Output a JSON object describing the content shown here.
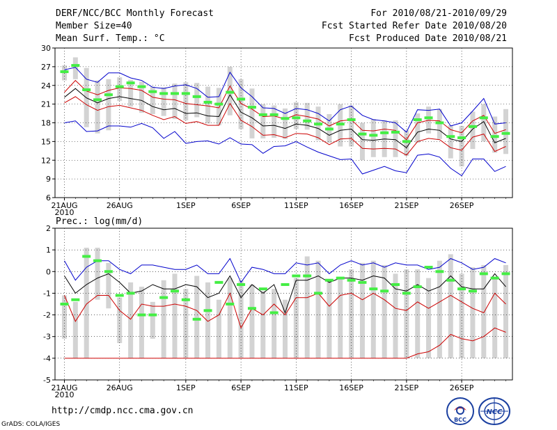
{
  "header": {
    "title": "DERF/NCC/BCC Monthly Forecast",
    "member_size": "Member Size=40",
    "variable": "Mean Surf. Temp.: °C",
    "period": "For 2010/08/21-2010/09/29",
    "started": "Fcst Started Refer Date 2010/08/20",
    "produced": "Fcst Produced Date 2010/08/21"
  },
  "footer": {
    "url": "http://cmdp.ncc.cma.gov.cn",
    "grads": "GrADS: COLA/IGES",
    "logo_left": "BCC",
    "logo_right": "NCC"
  },
  "colors": {
    "max": "#0000cc",
    "min": "#cc0000",
    "mean": "#000000",
    "sd": "#e8404a",
    "box": "#d3d3d3",
    "clim": "#44ee44"
  },
  "chart_data": [
    {
      "type": "line",
      "title": "Mean Surf. Temp.: °C",
      "ylabel": "°C",
      "ylim": [
        6,
        30
      ],
      "yticks": [
        6,
        9,
        12,
        15,
        18,
        21,
        24,
        27,
        30
      ],
      "xlim": [
        0.5,
        40
      ],
      "xticks": [
        {
          "x": 1,
          "label": "21AUG",
          "sub": "2010"
        },
        {
          "x": 6,
          "label": "26AUG"
        },
        {
          "x": 12,
          "label": "1SEP"
        },
        {
          "x": 17,
          "label": "6SEP"
        },
        {
          "x": 22,
          "label": "11SEP"
        },
        {
          "x": 27,
          "label": "16SEP"
        },
        {
          "x": 32,
          "label": "21SEP"
        },
        {
          "x": 37,
          "label": "26SEP"
        }
      ],
      "series": [
        {
          "name": "max",
          "values": [
            18,
            18.3,
            16.6,
            16.7,
            17.5,
            17.5,
            17.3,
            17.9,
            17.2,
            15.5,
            16.6,
            14.7,
            15.0,
            15.1,
            14.6,
            15.6,
            14.6,
            14.5,
            13.1,
            14.2,
            14.3,
            15.0,
            14.1,
            13.3,
            12.7,
            12.1,
            12.2,
            9.8,
            10.4,
            11.0,
            10.3,
            10.0,
            12.8,
            13.0,
            12.5,
            10.7,
            9.5,
            12.2,
            12.2,
            10.2,
            11.0
          ]
        },
        {
          "name": "max_top",
          "values": [
            26.5,
            26.9,
            25.0,
            24.5,
            26.0,
            26.0,
            25.2,
            24.8,
            23.7,
            23.5,
            23.9,
            24.1,
            23.5,
            22.1,
            22.2,
            26.1,
            23.6,
            22.2,
            20.4,
            20.3,
            19.5,
            20.3,
            20.1,
            19.5,
            18.3,
            20.1,
            20.7,
            19.2,
            18.5,
            18.3,
            18.0,
            16.5,
            20.1,
            20.0,
            20.2,
            17.5,
            18.0,
            19.9,
            21.9,
            17.8,
            18.0
          ]
        }
      ],
      "mean": [
        22.1,
        23.5,
        22.0,
        21.2,
        21.9,
        22.2,
        21.9,
        21.6,
        20.6,
        20.1,
        20.3,
        19.5,
        19.6,
        19.1,
        19.0,
        22.5,
        19.7,
        18.8,
        17.5,
        17.6,
        17.1,
        17.8,
        17.6,
        17.1,
        16.0,
        16.8,
        17.0,
        15.3,
        15.2,
        15.4,
        15.3,
        14.0,
        16.5,
        17.0,
        16.8,
        15.4,
        15.0,
        17.0,
        18.2,
        14.8,
        15.5
      ],
      "upper": [
        22.9,
        24.8,
        23.1,
        22.5,
        23.2,
        23.6,
        23.5,
        23.2,
        22.1,
        21.8,
        21.7,
        21.1,
        20.9,
        20.7,
        20.4,
        23.9,
        21.1,
        20.2,
        19.0,
        19.1,
        18.6,
        19.3,
        19.0,
        18.6,
        17.5,
        18.3,
        18.5,
        16.8,
        16.7,
        17.0,
        16.8,
        15.3,
        18.0,
        18.4,
        18.3,
        16.9,
        16.4,
        18.3,
        19.2,
        16.3,
        16.9
      ],
      "lower": [
        21.2,
        22.2,
        20.9,
        20.0,
        20.6,
        20.8,
        20.4,
        20.0,
        19.2,
        18.5,
        19.0,
        17.9,
        18.2,
        17.6,
        17.6,
        21.1,
        18.4,
        17.4,
        16.0,
        16.1,
        15.6,
        16.3,
        16.2,
        15.6,
        14.5,
        15.4,
        15.5,
        13.9,
        13.8,
        13.9,
        13.8,
        12.8,
        15.0,
        15.5,
        15.3,
        14.0,
        13.6,
        15.7,
        16.2,
        13.4,
        14.2
      ],
      "box_top": [
        27.2,
        28.5,
        26.8,
        24.8,
        25.0,
        25.3,
        24.9,
        24.6,
        23.8,
        23.7,
        24.3,
        24.5,
        24.4,
        23.8,
        23.6,
        27.0,
        25.0,
        23.5,
        21.0,
        20.8,
        20.3,
        21.3,
        21.2,
        20.6,
        19.4,
        21.0,
        20.8,
        18.0,
        18.6,
        18.4,
        18.4,
        16.8,
        19.5,
        20.6,
        20.2,
        17.6,
        17.5,
        19.8,
        21.0,
        19.0,
        20.2
      ],
      "box_bottom": [
        24.8,
        25.0,
        17.3,
        16.3,
        16.8,
        21.5,
        20.6,
        19.6,
        19.4,
        19.1,
        18.6,
        18.4,
        18.9,
        17.9,
        17.6,
        19.2,
        17.0,
        15.5,
        15.5,
        15.6,
        15.4,
        17.0,
        16.9,
        15.2,
        14.8,
        14.2,
        14.2,
        12.0,
        12.5,
        12.5,
        12.5,
        12.7,
        14.8,
        16.3,
        15.4,
        12.3,
        11.0,
        13.8,
        15.0,
        13.2,
        13.0
      ],
      "clim": [
        26.2,
        27.2,
        23.3,
        21.7,
        22.5,
        23.8,
        24.4,
        23.8,
        23.0,
        22.7,
        22.7,
        22.7,
        22.2,
        21.3,
        21.0,
        22.9,
        21.8,
        20.5,
        19.3,
        19.3,
        18.7,
        18.8,
        18.3,
        17.8,
        17.0,
        17.8,
        18.5,
        16.2,
        16.0,
        16.4,
        16.5,
        15.0,
        18.5,
        18.8,
        18.0,
        15.8,
        15.6,
        17.4,
        18.8,
        15.8,
        16.3
      ]
    },
    {
      "type": "line",
      "title": "Prec.: log(mm/d)",
      "ylabel": "log(mm/d)",
      "ylim": [
        -5,
        2
      ],
      "yticks": [
        -5,
        -4,
        -3,
        -2,
        -1,
        0,
        1,
        2
      ],
      "xlim": [
        0.5,
        40
      ],
      "xticks": [
        {
          "x": 1,
          "label": "21AUG",
          "sub": "2010"
        },
        {
          "x": 6,
          "label": "26AUG"
        },
        {
          "x": 12,
          "label": "1SEP"
        },
        {
          "x": 17,
          "label": "6SEP"
        },
        {
          "x": 22,
          "label": "11SEP"
        },
        {
          "x": 27,
          "label": "16SEP"
        },
        {
          "x": 32,
          "label": "21SEP"
        },
        {
          "x": 37,
          "label": "26SEP"
        }
      ],
      "max": [
        0.5,
        -0.4,
        0.2,
        0.5,
        0.5,
        0.1,
        -0.1,
        0.3,
        0.3,
        0.2,
        0.1,
        0.1,
        0.3,
        -0.1,
        -0.1,
        0.6,
        -0.5,
        0.2,
        0.1,
        -0.1,
        -0.1,
        0.4,
        0.3,
        0.4,
        -0.1,
        0.3,
        0.5,
        0.3,
        0.4,
        0.2,
        0.4,
        0.3,
        0.3,
        0.1,
        0.2,
        0.6,
        0.4,
        0.1,
        0.2,
        0.6,
        0.4
      ],
      "mean": [
        -0.2,
        -1.0,
        -0.6,
        -0.3,
        -0.1,
        -0.5,
        -1.0,
        -0.9,
        -0.6,
        -0.8,
        -0.8,
        -0.6,
        -0.7,
        -1.2,
        -1.0,
        -0.2,
        -1.2,
        -0.6,
        -1.0,
        -0.6,
        -1.9,
        -0.4,
        -0.4,
        -0.2,
        -0.5,
        -0.3,
        -0.3,
        -0.4,
        -0.2,
        -0.3,
        -0.8,
        -0.9,
        -0.6,
        -0.9,
        -0.7,
        -0.2,
        -0.7,
        -0.8,
        -0.8,
        -0.1,
        -0.7
      ],
      "min": [
        -1.1,
        -2.3,
        -1.5,
        -1.1,
        -1.1,
        -1.8,
        -2.2,
        -1.5,
        -1.6,
        -1.6,
        -1.5,
        -1.6,
        -1.8,
        -2.3,
        -2.0,
        -1.0,
        -2.6,
        -1.7,
        -2.0,
        -1.5,
        -2.0,
        -1.2,
        -1.2,
        -1.0,
        -1.6,
        -1.1,
        -1.0,
        -1.3,
        -1.0,
        -1.3,
        -1.7,
        -1.8,
        -1.4,
        -1.7,
        -1.4,
        -1.1,
        -1.4,
        -1.7,
        -1.9,
        -1.0,
        -1.5
      ],
      "min_bottom": [
        -4,
        -4,
        -4,
        -4,
        -4,
        -4,
        -4,
        -4,
        -4,
        -4,
        -4,
        -4,
        -4,
        -4,
        -4,
        -4,
        -4,
        -4,
        -4,
        -4,
        -4,
        -4,
        -4,
        -4,
        -4,
        -4,
        -4,
        -4,
        -4,
        -4,
        -4,
        -4,
        -3.8,
        -3.7,
        -3.4,
        -2.9,
        -3.1,
        -3.2,
        -3.0,
        -2.6,
        -2.8
      ],
      "box_top": [
        -1.1,
        -1.4,
        1.1,
        1.1,
        0.4,
        -1.2,
        -0.5,
        -0.7,
        -1.4,
        -0.4,
        -0.1,
        -0.8,
        -0.2,
        -0.5,
        -1.3,
        -0.3,
        -0.4,
        -0.6,
        -0.9,
        -0.8,
        -1.3,
        -0.3,
        0.7,
        0.5,
        -0.4,
        -0.3,
        0.1,
        0.4,
        0.5,
        0.3,
        -0.1,
        0.1,
        0.1,
        -0.3,
        0.5,
        0.8,
        -0.1,
        0.2,
        0.3,
        -0.3,
        0.3
      ],
      "box_bottom": [
        -3.1,
        -4.0,
        -4.0,
        -1.3,
        -1.7,
        -3.3,
        -4.0,
        -4.0,
        -3.1,
        -4.0,
        -4.0,
        -4.0,
        -4.0,
        -4.0,
        -4.0,
        -4.0,
        -4.0,
        -4.0,
        -4.0,
        -4.0,
        -4.0,
        -4.0,
        -4.0,
        -4.0,
        -4.0,
        -4.0,
        -4.0,
        -4.0,
        -4.0,
        -4.0,
        -4.0,
        -4.0,
        -4.0,
        -4.0,
        -4.0,
        -4.0,
        -4.0,
        -4.0,
        -4.0,
        -4.0,
        -4.0
      ],
      "clim": [
        -1.5,
        -1.3,
        0.7,
        0.5,
        0.0,
        -1.1,
        -1.0,
        -2.0,
        -2.0,
        -1.2,
        -0.9,
        -1.3,
        -2.2,
        -1.8,
        -0.5,
        -1.5,
        -0.6,
        -1.7,
        -0.8,
        -1.9,
        -0.6,
        -0.2,
        -0.2,
        -1.0,
        -0.4,
        -0.3,
        -0.4,
        -0.5,
        -0.8,
        -0.9,
        -0.6,
        -1.0,
        -0.7,
        0.2,
        0.0,
        -0.4,
        -0.8,
        -0.9,
        -0.1,
        -0.3,
        -0.1
      ]
    }
  ]
}
